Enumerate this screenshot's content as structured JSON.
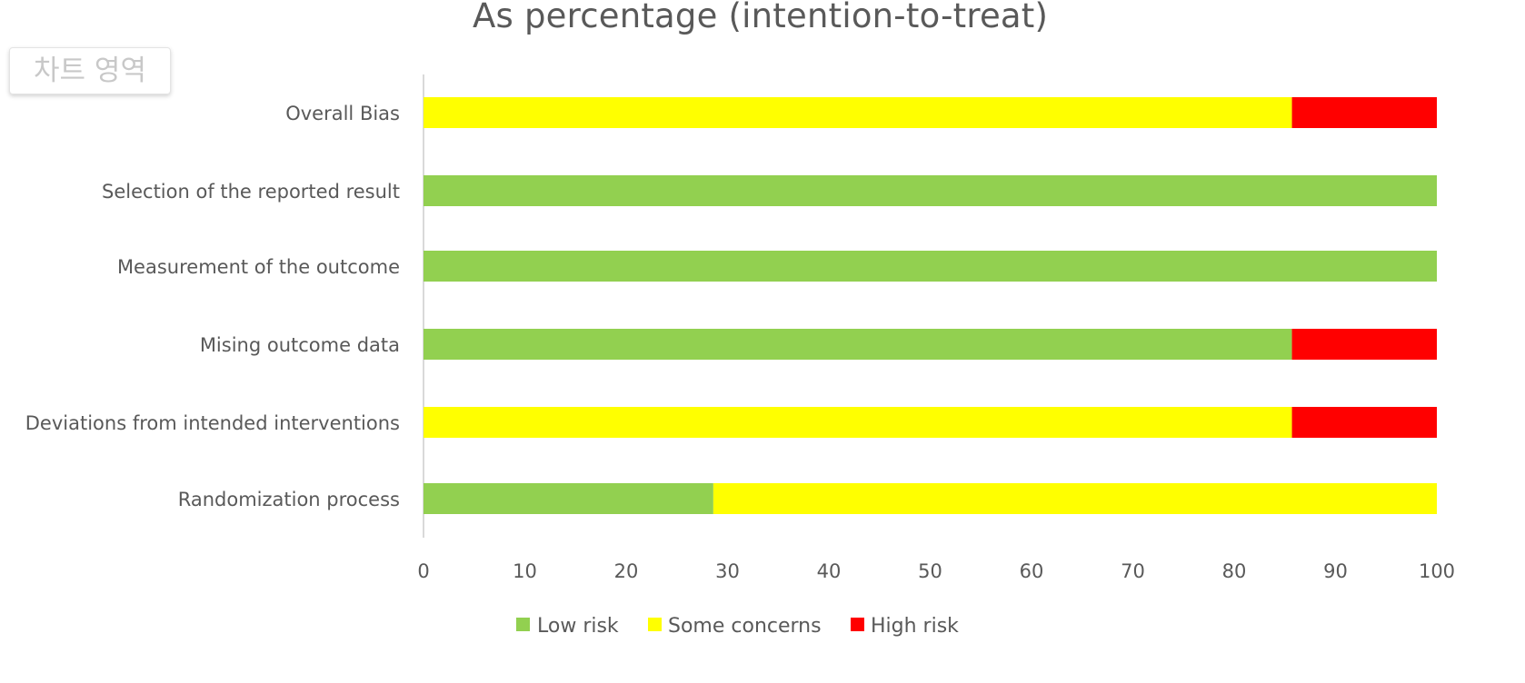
{
  "chart_data": {
    "type": "bar",
    "orientation": "horizontal",
    "stacked": true,
    "title": "As percentage (intention-to-treat)",
    "categories": [
      "Randomization process",
      "Deviations from intended interventions",
      "Mising outcome data",
      "Measurement of the outcome",
      "Selection of the reported result",
      "Overall Bias"
    ],
    "series": [
      {
        "name": "Low risk",
        "color": "#92d050",
        "values": [
          28.6,
          0,
          85.7,
          100,
          100,
          0
        ]
      },
      {
        "name": "Some concerns",
        "color": "#ffff00",
        "values": [
          71.4,
          85.7,
          0,
          0,
          0,
          85.7
        ]
      },
      {
        "name": "High risk",
        "color": "#ff0000",
        "values": [
          0,
          14.3,
          14.3,
          0,
          0,
          14.3
        ]
      }
    ],
    "xlim": [
      0,
      100
    ],
    "xticks": [
      "0",
      "10",
      "20",
      "30",
      "40",
      "50",
      "60",
      "70",
      "80",
      "90",
      "100"
    ],
    "xlabel": "",
    "ylabel": "",
    "grid": false,
    "legend": "bottom"
  },
  "overlay": {
    "chart_area_tooltip": "차트 영역"
  }
}
